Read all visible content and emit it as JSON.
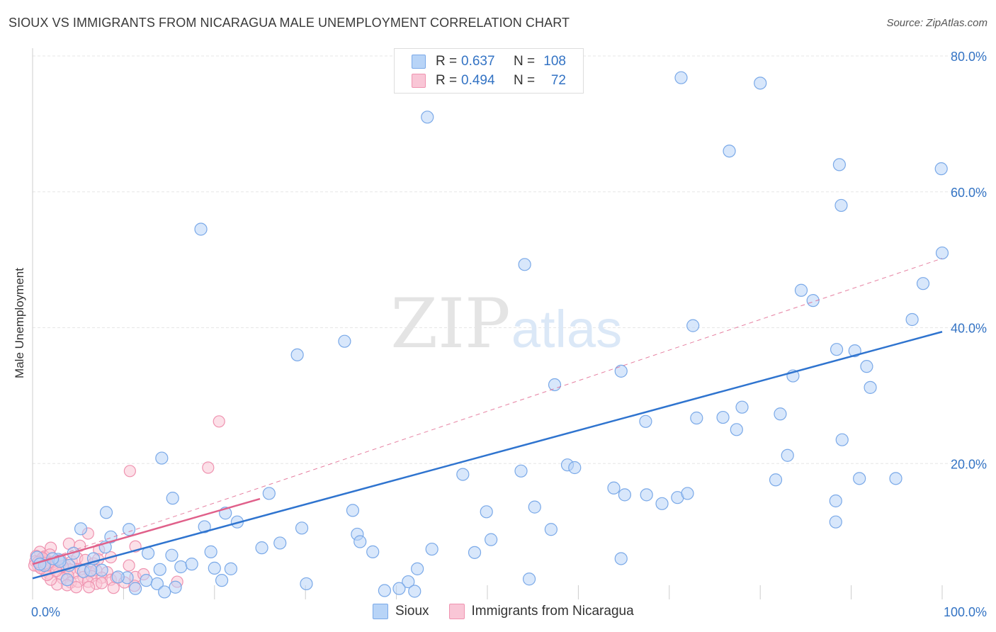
{
  "title": "SIOUX VS IMMIGRANTS FROM NICARAGUA MALE UNEMPLOYMENT CORRELATION CHART",
  "source": "Source: ZipAtlas.com",
  "watermark": {
    "zip": "ZIP",
    "atlas": "atlas"
  },
  "colors": {
    "blue_fill": "#b8d4f7",
    "blue_stroke": "#7aa9e8",
    "blue_line": "#2f74cf",
    "pink_fill": "#f9c6d6",
    "pink_stroke": "#ef93b0",
    "pink_line": "#e0608a",
    "tick_label": "#3373c4",
    "grid": "#e6e6e6"
  },
  "legend_top": [
    {
      "r_label": "R =",
      "r_value": "0.637",
      "n_label": "N =",
      "n_value": "108"
    },
    {
      "r_label": "R =",
      "r_value": "0.494",
      "n_label": "N =",
      "n_value": "72"
    }
  ],
  "legend_bottom": [
    "Sioux",
    "Immigrants from Nicaragua"
  ],
  "chart_data": {
    "type": "scatter",
    "title": "SIOUX VS IMMIGRANTS FROM NICARAGUA MALE UNEMPLOYMENT CORRELATION CHART",
    "xlabel": "",
    "ylabel": "Male Unemployment",
    "xlim": [
      0,
      100
    ],
    "ylim": [
      0,
      80
    ],
    "x_tick_labels": [
      "0.0%",
      "100.0%"
    ],
    "y_ticks": [
      20,
      40,
      60,
      80
    ],
    "y_tick_labels": [
      "20.0%",
      "40.0%",
      "60.0%",
      "80.0%"
    ],
    "grid": true,
    "legend_position": "top-center",
    "series": [
      {
        "name": "Sioux",
        "R": 0.637,
        "N": 108,
        "trend": {
          "x": [
            0,
            100
          ],
          "y": [
            3.1,
            39.4
          ],
          "style": "solid"
        },
        "points": [
          [
            71.3,
            76.8
          ],
          [
            80.0,
            76.0
          ],
          [
            43.4,
            71.0
          ],
          [
            76.6,
            66.0
          ],
          [
            88.7,
            64.0
          ],
          [
            99.9,
            63.4
          ],
          [
            88.9,
            58.0
          ],
          [
            18.5,
            54.5
          ],
          [
            100.0,
            51.0
          ],
          [
            54.1,
            49.3
          ],
          [
            97.9,
            46.5
          ],
          [
            84.5,
            45.5
          ],
          [
            85.8,
            44.0
          ],
          [
            96.7,
            41.2
          ],
          [
            72.6,
            40.3
          ],
          [
            34.3,
            38.0
          ],
          [
            29.1,
            36.0
          ],
          [
            88.4,
            36.8
          ],
          [
            90.4,
            36.6
          ],
          [
            91.7,
            34.3
          ],
          [
            64.7,
            33.6
          ],
          [
            83.6,
            32.9
          ],
          [
            57.4,
            31.6
          ],
          [
            92.1,
            31.2
          ],
          [
            75.9,
            26.8
          ],
          [
            78.0,
            28.3
          ],
          [
            73.0,
            26.7
          ],
          [
            67.4,
            26.2
          ],
          [
            82.2,
            27.3
          ],
          [
            77.4,
            25.0
          ],
          [
            89.0,
            23.5
          ],
          [
            14.2,
            20.8
          ],
          [
            83.0,
            21.2
          ],
          [
            58.8,
            19.8
          ],
          [
            59.6,
            19.4
          ],
          [
            53.7,
            18.9
          ],
          [
            47.3,
            18.4
          ],
          [
            90.9,
            17.8
          ],
          [
            94.9,
            17.8
          ],
          [
            81.7,
            17.6
          ],
          [
            63.9,
            16.4
          ],
          [
            65.1,
            15.4
          ],
          [
            67.5,
            15.4
          ],
          [
            70.9,
            15.0
          ],
          [
            72.0,
            15.6
          ],
          [
            26.0,
            15.6
          ],
          [
            69.2,
            14.1
          ],
          [
            15.4,
            14.9
          ],
          [
            88.3,
            14.5
          ],
          [
            55.2,
            13.6
          ],
          [
            35.2,
            13.1
          ],
          [
            49.9,
            12.9
          ],
          [
            8.1,
            12.8
          ],
          [
            21.2,
            12.7
          ],
          [
            22.5,
            11.4
          ],
          [
            18.9,
            10.7
          ],
          [
            29.6,
            10.5
          ],
          [
            88.3,
            11.4
          ],
          [
            57.0,
            10.3
          ],
          [
            10.6,
            10.3
          ],
          [
            5.3,
            10.4
          ],
          [
            35.7,
            9.6
          ],
          [
            8.6,
            9.2
          ],
          [
            36.0,
            8.5
          ],
          [
            50.4,
            8.8
          ],
          [
            25.2,
            7.6
          ],
          [
            27.2,
            8.3
          ],
          [
            43.9,
            7.4
          ],
          [
            8.0,
            7.7
          ],
          [
            37.4,
            7.0
          ],
          [
            48.6,
            6.9
          ],
          [
            12.7,
            6.8
          ],
          [
            15.3,
            6.5
          ],
          [
            64.7,
            6.0
          ],
          [
            19.6,
            7.0
          ],
          [
            4.5,
            6.8
          ],
          [
            6.7,
            6.0
          ],
          [
            2.8,
            5.9
          ],
          [
            14.0,
            4.4
          ],
          [
            16.3,
            4.8
          ],
          [
            17.5,
            5.2
          ],
          [
            20.0,
            4.6
          ],
          [
            1.3,
            5.0
          ],
          [
            4.0,
            5.0
          ],
          [
            7.6,
            4.3
          ],
          [
            5.6,
            4.1
          ],
          [
            21.8,
            4.5
          ],
          [
            42.3,
            4.5
          ],
          [
            54.6,
            3.0
          ],
          [
            10.4,
            3.2
          ],
          [
            9.4,
            3.3
          ],
          [
            12.5,
            2.8
          ],
          [
            20.8,
            2.8
          ],
          [
            30.1,
            2.3
          ],
          [
            3.8,
            2.9
          ],
          [
            41.3,
            2.6
          ],
          [
            11.3,
            1.6
          ],
          [
            15.7,
            1.8
          ],
          [
            13.7,
            2.3
          ],
          [
            40.3,
            1.6
          ],
          [
            42.0,
            1.2
          ],
          [
            38.7,
            1.3
          ],
          [
            14.5,
            1.1
          ],
          [
            6.4,
            4.3
          ],
          [
            3.0,
            5.6
          ],
          [
            0.5,
            6.2
          ],
          [
            2.2,
            6.0
          ],
          [
            0.8,
            5.2
          ]
        ]
      },
      {
        "name": "Immigrants from Nicaragua",
        "R": 0.494,
        "N": 72,
        "trend": {
          "x": [
            0,
            25
          ],
          "y": [
            5.2,
            14.8
          ],
          "style": "solid",
          "extended": {
            "x": [
              0,
              100
            ],
            "y": [
              5.2,
              50.2
            ],
            "style": "dashed"
          }
        },
        "points": [
          [
            20.5,
            26.2
          ],
          [
            19.3,
            19.4
          ],
          [
            10.7,
            18.9
          ],
          [
            6.1,
            9.7
          ],
          [
            11.3,
            7.8
          ],
          [
            5.2,
            7.9
          ],
          [
            4.0,
            8.2
          ],
          [
            7.3,
            7.3
          ],
          [
            2.0,
            7.6
          ],
          [
            0.8,
            7.0
          ],
          [
            1.3,
            6.3
          ],
          [
            1.9,
            6.6
          ],
          [
            0.4,
            6.4
          ],
          [
            1.2,
            5.9
          ],
          [
            0.3,
            5.6
          ],
          [
            0.9,
            5.6
          ],
          [
            1.6,
            5.6
          ],
          [
            2.5,
            5.2
          ],
          [
            3.1,
            5.8
          ],
          [
            3.6,
            5.0
          ],
          [
            4.3,
            5.6
          ],
          [
            4.9,
            6.1
          ],
          [
            5.8,
            5.8
          ],
          [
            6.7,
            5.3
          ],
          [
            7.2,
            5.9
          ],
          [
            8.6,
            6.2
          ],
          [
            10.6,
            5.0
          ],
          [
            2.4,
            4.7
          ],
          [
            3.4,
            4.6
          ],
          [
            4.1,
            4.4
          ],
          [
            4.6,
            3.9
          ],
          [
            5.3,
            4.4
          ],
          [
            6.3,
            4.0
          ],
          [
            7.0,
            4.3
          ],
          [
            8.2,
            4.0
          ],
          [
            1.3,
            4.3
          ],
          [
            0.6,
            4.9
          ],
          [
            0.2,
            5.0
          ],
          [
            1.8,
            3.8
          ],
          [
            2.9,
            3.8
          ],
          [
            3.9,
            3.5
          ],
          [
            5.6,
            3.3
          ],
          [
            6.5,
            3.4
          ],
          [
            7.6,
            3.2
          ],
          [
            8.6,
            2.9
          ],
          [
            9.2,
            3.2
          ],
          [
            11.3,
            3.3
          ],
          [
            12.2,
            3.7
          ],
          [
            3.3,
            3.1
          ],
          [
            4.2,
            2.5
          ],
          [
            5.0,
            2.6
          ],
          [
            6.1,
            2.6
          ],
          [
            7.0,
            2.3
          ],
          [
            2.7,
            2.2
          ],
          [
            3.8,
            2.1
          ],
          [
            4.8,
            1.8
          ],
          [
            6.2,
            1.8
          ],
          [
            7.6,
            2.4
          ],
          [
            8.9,
            1.7
          ],
          [
            10.1,
            2.5
          ],
          [
            11.2,
            2.0
          ],
          [
            15.9,
            2.6
          ],
          [
            2.0,
            2.9
          ],
          [
            1.6,
            3.6
          ],
          [
            0.9,
            4.6
          ],
          [
            1.7,
            5.0
          ],
          [
            2.2,
            5.5
          ],
          [
            3.3,
            4.9
          ],
          [
            2.6,
            4.2
          ],
          [
            1.1,
            6.1
          ],
          [
            0.6,
            5.5
          ],
          [
            1.4,
            5.3
          ]
        ]
      }
    ]
  }
}
